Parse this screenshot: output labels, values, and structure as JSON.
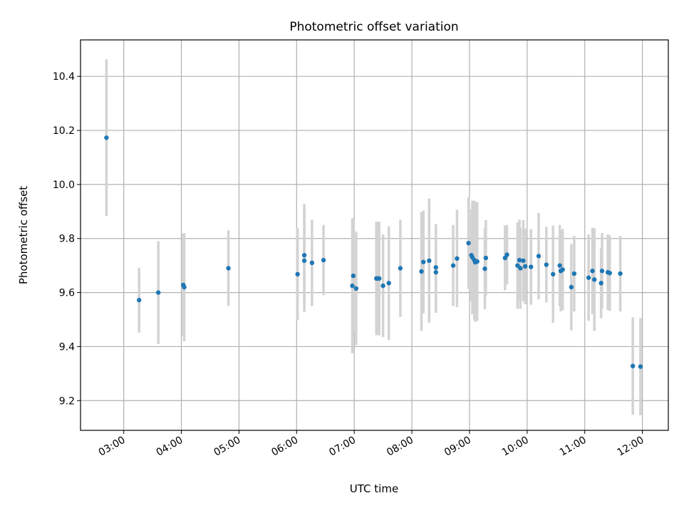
{
  "chart_data": {
    "type": "scatter",
    "title": "Photometric offset variation",
    "xlabel": "UTC time",
    "ylabel": "Photometric offset",
    "grid": true,
    "xlim": [
      "02:15",
      "12:27"
    ],
    "ylim": [
      9.09,
      10.535
    ],
    "xticks": [
      "03:00",
      "04:00",
      "05:00",
      "06:00",
      "07:00",
      "08:00",
      "09:00",
      "10:00",
      "11:00",
      "12:00"
    ],
    "yticks": [
      9.2,
      9.4,
      9.6,
      9.8,
      10.0,
      10.2,
      10.4
    ],
    "ytick_labels": [
      "9.2",
      "9.4",
      "9.6",
      "9.8",
      "10.0",
      "10.2",
      "10.4"
    ],
    "colors": {
      "marker": "#1f77b4",
      "errorbar": "#d3d3d3",
      "grid": "#b0b0b0"
    },
    "series": [
      {
        "x": [
          "02:42",
          "03:16",
          "03:36",
          "04:02",
          "04:03",
          "04:49",
          "06:01",
          "06:08",
          "06:08",
          "06:16",
          "06:28",
          "06:58",
          "06:59",
          "07:02",
          "07:23",
          "07:24",
          "07:26",
          "07:30",
          "07:36",
          "07:48",
          "08:10",
          "08:12",
          "08:18",
          "08:25",
          "08:25",
          "08:43",
          "08:47",
          "08:59",
          "09:02",
          "09:03",
          "09:05",
          "09:06",
          "09:07",
          "09:08",
          "09:16",
          "09:17",
          "09:37",
          "09:39",
          "09:50",
          "09:52",
          "09:53",
          "09:56",
          "09:58",
          "10:04",
          "10:12",
          "10:20",
          "10:27",
          "10:34",
          "10:35",
          "10:37",
          "10:46",
          "10:49",
          "11:04",
          "11:08",
          "11:10",
          "11:17",
          "11:18",
          "11:24",
          "11:26",
          "11:37",
          "11:50",
          "11:58"
        ],
        "y": [
          10.173,
          9.572,
          9.6,
          9.628,
          9.62,
          9.69,
          9.668,
          9.738,
          9.718,
          9.71,
          9.72,
          9.625,
          9.662,
          9.615,
          9.652,
          9.652,
          9.652,
          9.625,
          9.635,
          9.69,
          9.678,
          9.713,
          9.718,
          9.693,
          9.675,
          9.7,
          9.726,
          9.783,
          9.738,
          9.73,
          9.72,
          9.712,
          9.715,
          9.715,
          9.688,
          9.728,
          9.728,
          9.74,
          9.7,
          9.72,
          9.69,
          9.718,
          9.697,
          9.695,
          9.735,
          9.703,
          9.668,
          9.7,
          9.68,
          9.685,
          9.62,
          9.67,
          9.655,
          9.68,
          9.648,
          9.635,
          9.68,
          9.675,
          9.672,
          9.67,
          9.328,
          9.326
        ],
        "err": [
          0.29,
          0.12,
          0.19,
          0.19,
          0.2,
          0.14,
          0.17,
          0.19,
          0.19,
          0.16,
          0.13,
          0.25,
          0.21,
          0.21,
          0.21,
          0.21,
          0.21,
          0.19,
          0.21,
          0.18,
          0.22,
          0.19,
          0.23,
          0.16,
          0.15,
          0.15,
          0.18,
          0.17,
          0.17,
          0.21,
          0.22,
          0.22,
          0.22,
          0.22,
          0.15,
          0.14,
          0.12,
          0.11,
          0.16,
          0.15,
          0.15,
          0.15,
          0.14,
          0.14,
          0.16,
          0.14,
          0.18,
          0.15,
          0.15,
          0.15,
          0.16,
          0.14,
          0.16,
          0.16,
          0.19,
          0.13,
          0.14,
          0.14,
          0.14,
          0.14,
          0.18,
          0.18
        ]
      }
    ]
  }
}
